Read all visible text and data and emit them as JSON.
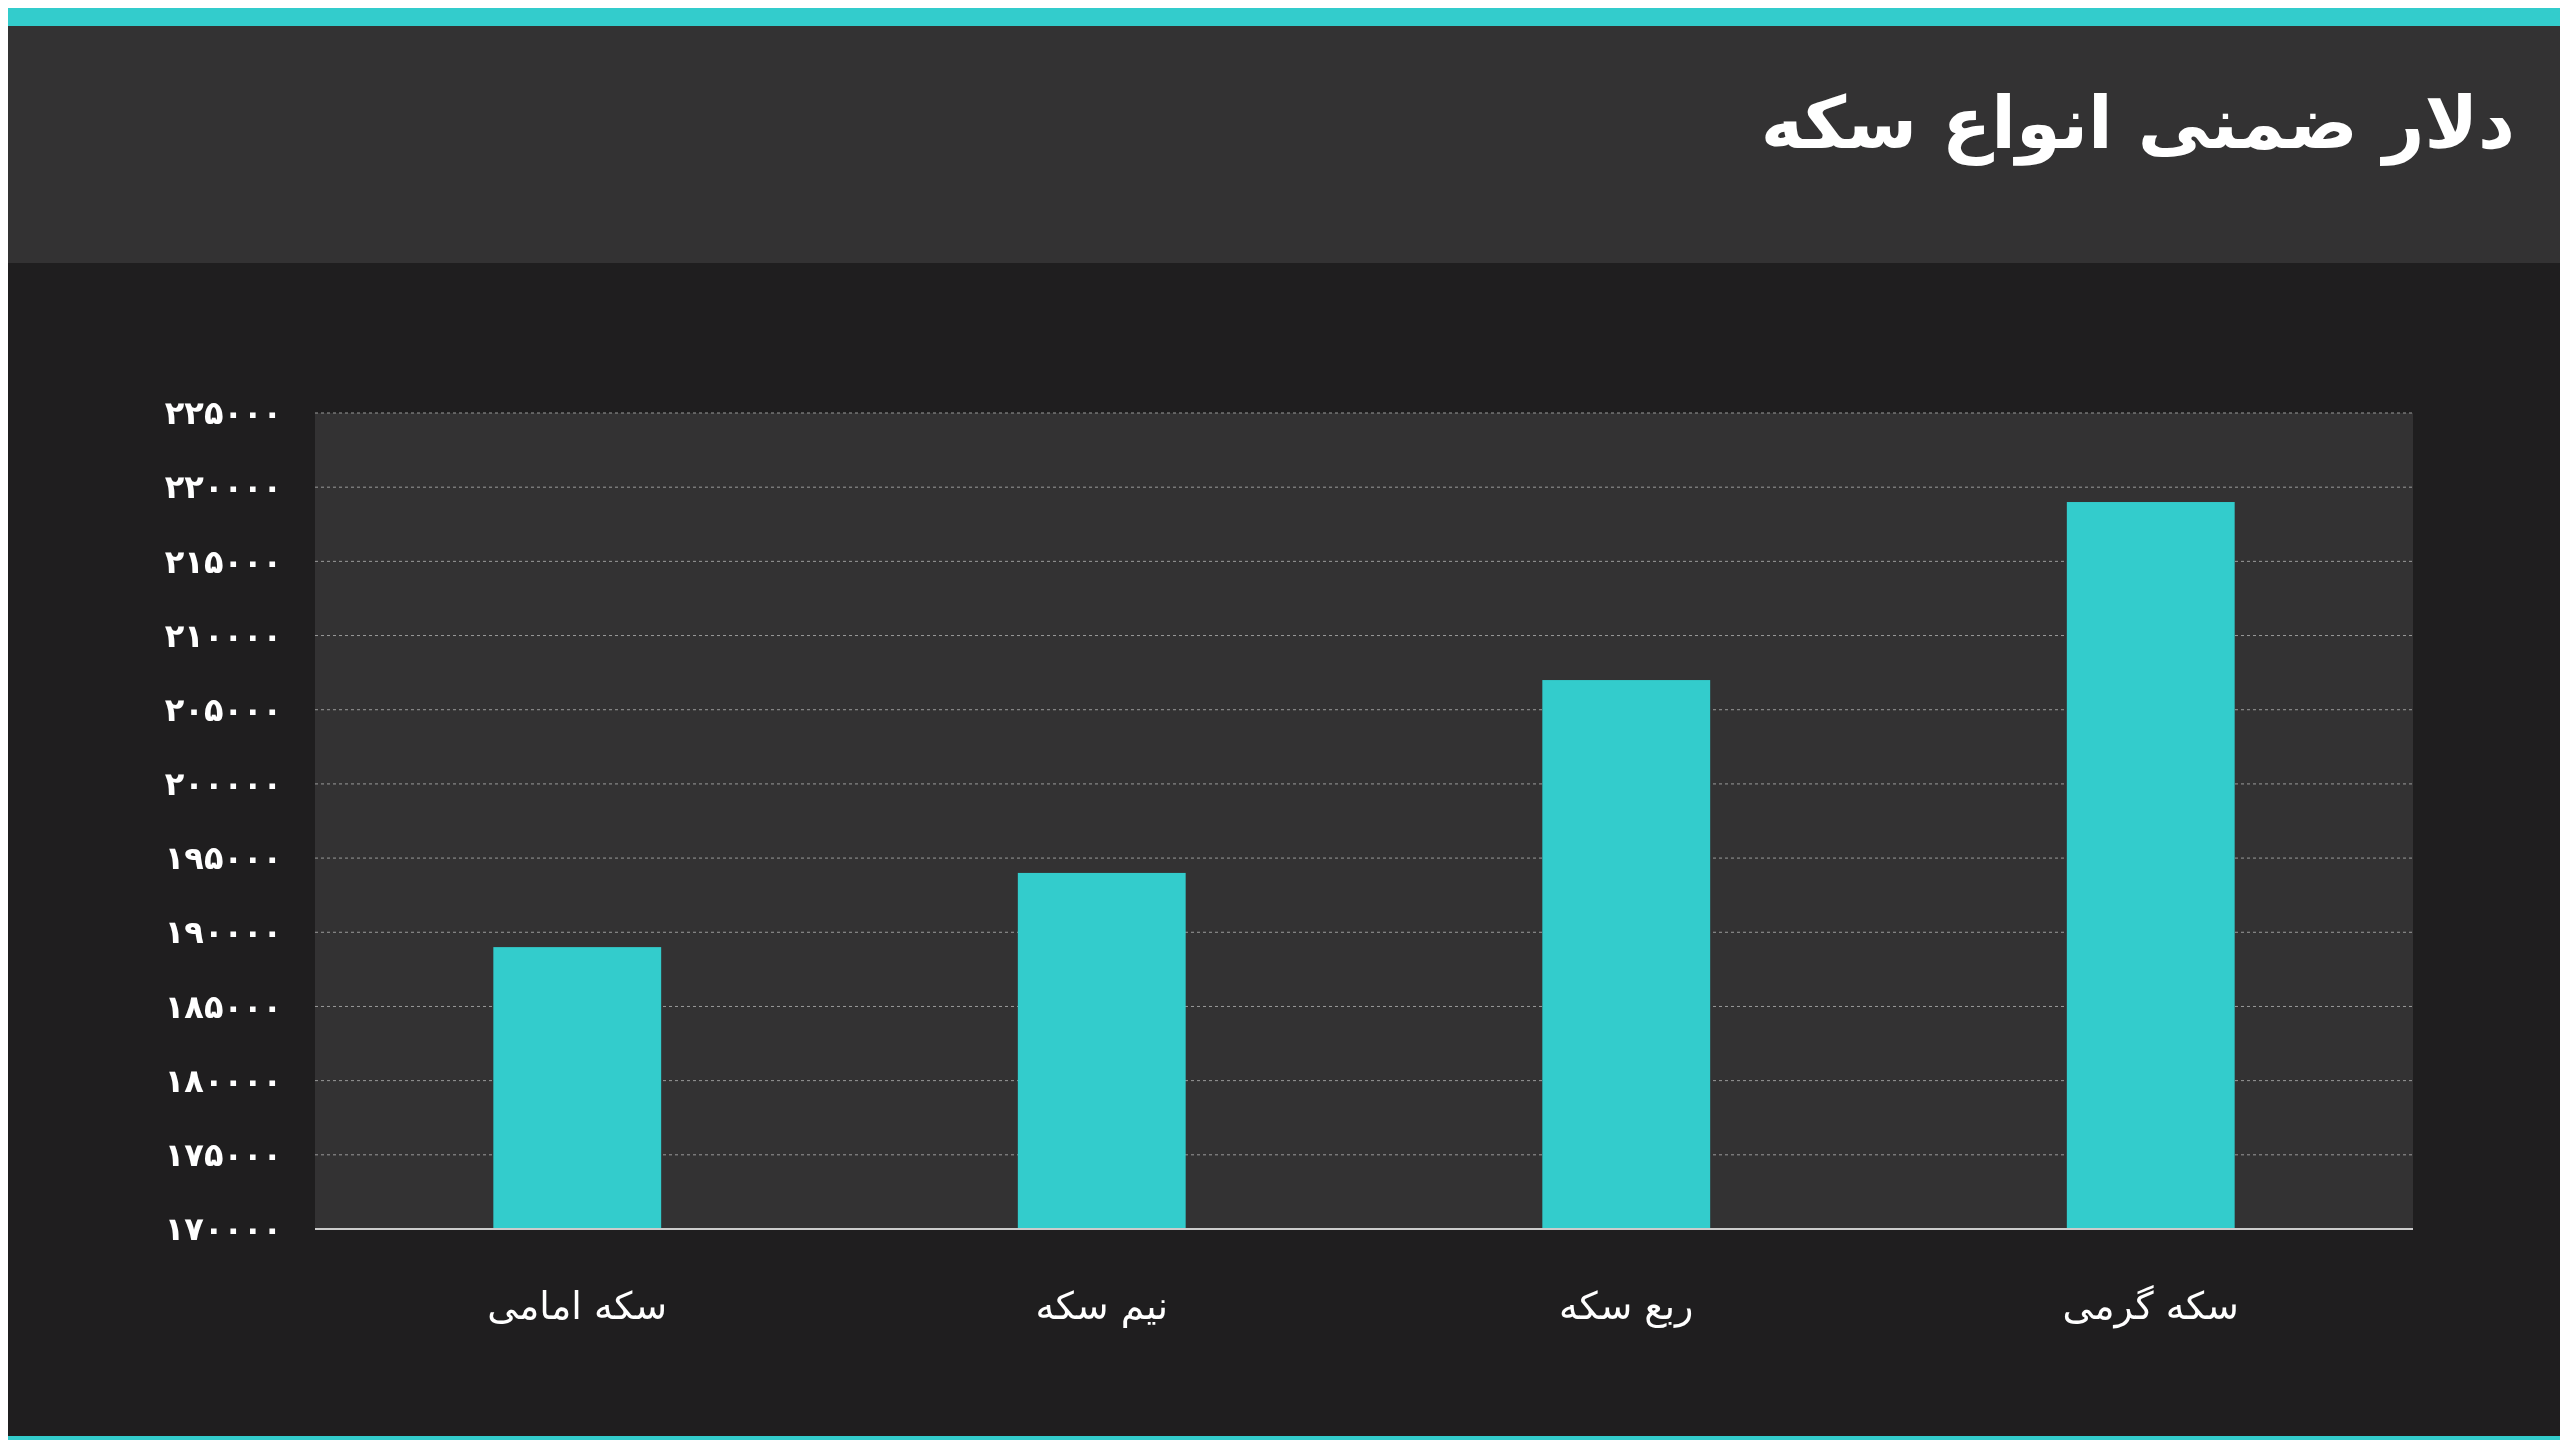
{
  "chart_data": {
    "type": "bar",
    "title": "دلار ضمنی انواع سکه",
    "categories": [
      "سکه امامی",
      "نیم سکه",
      "ربع سکه",
      "سکه گرمی"
    ],
    "values": [
      189000,
      194000,
      207000,
      219000
    ],
    "color": "#33cccc",
    "ylim": [
      170000,
      225000
    ],
    "yticks": [
      {
        "value": 170000,
        "label": "۱۷۰۰۰۰"
      },
      {
        "value": 175000,
        "label": "۱۷۵۰۰۰"
      },
      {
        "value": 180000,
        "label": "۱۸۰۰۰۰"
      },
      {
        "value": 185000,
        "label": "۱۸۵۰۰۰"
      },
      {
        "value": 190000,
        "label": "۱۹۰۰۰۰"
      },
      {
        "value": 195000,
        "label": "۱۹۵۰۰۰"
      },
      {
        "value": 200000,
        "label": "۲۰۰۰۰۰"
      },
      {
        "value": 205000,
        "label": "۲۰۵۰۰۰"
      },
      {
        "value": 210000,
        "label": "۲۱۰۰۰۰"
      },
      {
        "value": 215000,
        "label": "۲۱۵۰۰۰"
      },
      {
        "value": 220000,
        "label": "۲۲۰۰۰۰"
      },
      {
        "value": 225000,
        "label": "۲۲۵۰۰۰"
      }
    ],
    "grid": "y"
  }
}
